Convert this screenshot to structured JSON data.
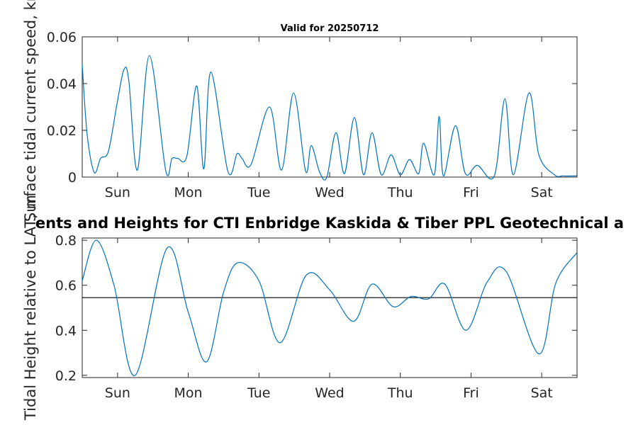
{
  "chart_data": [
    {
      "type": "line",
      "title": "Valid for 20250712",
      "ylabel": "Surface tidal current speed, kn",
      "xlabel": "",
      "ylim": [
        0,
        0.06
      ],
      "yticks": [
        0,
        0.02,
        0.04,
        0.06
      ],
      "ytick_labels": [
        "0",
        "0.02",
        "0.04",
        "0.06"
      ],
      "xlim": [
        0,
        7
      ],
      "xticks": [
        0.5,
        1.5,
        2.5,
        3.5,
        4.5,
        5.5,
        6.5
      ],
      "xtick_labels": [
        "Sun",
        "Mon",
        "Tue",
        "Wed",
        "Thu",
        "Fri",
        "Sat"
      ],
      "grid": false,
      "series_color": "#0072BD",
      "x": [
        0,
        0.07,
        0.17,
        0.26,
        0.37,
        0.49,
        0.59,
        0.66,
        0.78,
        0.95,
        1.18,
        1.27,
        1.35,
        1.48,
        1.62,
        1.72,
        1.82,
        2.06,
        2.19,
        2.26,
        2.39,
        2.65,
        2.82,
        2.99,
        3.16,
        3.24,
        3.36,
        3.46,
        3.59,
        3.71,
        3.85,
        3.98,
        4.1,
        4.23,
        4.37,
        4.5,
        4.63,
        4.76,
        4.83,
        4.98,
        5.05,
        5.11,
        5.28,
        5.42,
        5.59,
        5.83,
        5.98,
        6.1,
        6.32,
        6.46,
        6.68,
        6.8,
        7
      ],
      "values": [
        0.048,
        0.018,
        0.002,
        0.008,
        0.011,
        0.031,
        0.046,
        0.041,
        0.003,
        0.052,
        0.003,
        0.008,
        0.008,
        0.009,
        0.039,
        0.0035,
        0.045,
        0.0025,
        0.01,
        0.008,
        0.0055,
        0.03,
        0.003,
        0.036,
        0.0025,
        0.0135,
        0.002,
        0.0,
        0.019,
        0.0015,
        0.0255,
        0.001,
        0.019,
        0.001,
        0.0095,
        0.001,
        0.0075,
        0.0015,
        0.0145,
        0.001,
        0.026,
        0.0005,
        0.022,
        0.0015,
        0.005,
        0.0005,
        0.0335,
        0.001,
        0.036,
        0.0095,
        0.001,
        0.0005,
        0.0005
      ]
    },
    {
      "type": "line",
      "title": "ents and Heights for CTI Enbridge  Kaskida & Tiber PPL Geotechnical a",
      "ylabel": "Tidal Height relative to LAT, m",
      "xlabel": "",
      "ylim": [
        0.19,
        0.81
      ],
      "yticks": [
        0.2,
        0.4,
        0.6,
        0.8
      ],
      "ytick_labels": [
        "0.2",
        "0.4",
        "0.6",
        "0.8"
      ],
      "xlim": [
        0,
        7
      ],
      "xticks": [
        0.5,
        1.5,
        2.5,
        3.5,
        4.5,
        5.5,
        6.5
      ],
      "xtick_labels": [
        "Sun",
        "Mon",
        "Tue",
        "Wed",
        "Thu",
        "Fri",
        "Sat"
      ],
      "grid": false,
      "series_color": "#0072BD",
      "reference_line": 0.545,
      "reference_color": "#000000",
      "x": [
        0,
        0.2,
        0.45,
        0.75,
        1.2,
        1.5,
        1.76,
        2.0,
        2.2,
        2.5,
        2.8,
        3.17,
        3.5,
        3.84,
        4.1,
        4.4,
        4.65,
        4.9,
        5.13,
        5.43,
        5.73,
        6.0,
        6.46,
        6.7,
        7
      ],
      "values": [
        0.62,
        0.8,
        0.6,
        0.2,
        0.765,
        0.48,
        0.26,
        0.57,
        0.7,
        0.62,
        0.345,
        0.645,
        0.58,
        0.44,
        0.605,
        0.505,
        0.55,
        0.54,
        0.605,
        0.4,
        0.615,
        0.66,
        0.295,
        0.61,
        0.745
      ]
    }
  ]
}
